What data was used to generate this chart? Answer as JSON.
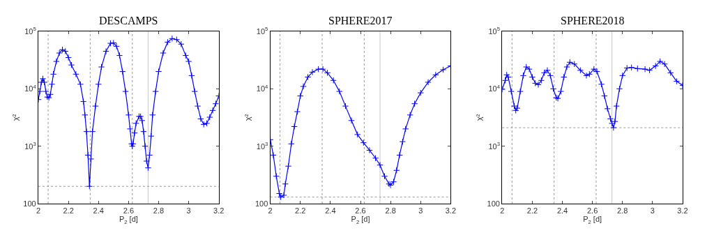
{
  "chart_data": [
    {
      "type": "line",
      "title": "DESCAMPS",
      "xlabel": "P$_{2}$ [d]",
      "ylabel": "χ²",
      "log": "y",
      "grid": false,
      "marker": "cross",
      "line_style": "solid",
      "xlim": [
        2,
        3.2
      ],
      "xticks": [
        2,
        2.2,
        2.4,
        2.6,
        2.8,
        3,
        3.2
      ],
      "ylim": [
        100,
        100000
      ],
      "yticks": [
        100,
        {
          "value": 1000,
          "label": "10$^{3}$"
        },
        {
          "value": 10000,
          "label": "10$^{4}$"
        },
        {
          "value": 100000,
          "label": "10$^{5}$"
        }
      ],
      "x": [
        2.0,
        2.01,
        2.02,
        2.03,
        2.04,
        2.05,
        2.06,
        2.07,
        2.08,
        2.09,
        2.1,
        2.12,
        2.14,
        2.16,
        2.18,
        2.2,
        2.22,
        2.25,
        2.28,
        2.3,
        2.31,
        2.32,
        2.33,
        2.34,
        2.35,
        2.36,
        2.38,
        2.4,
        2.42,
        2.45,
        2.48,
        2.5,
        2.52,
        2.54,
        2.56,
        2.58,
        2.6,
        2.61,
        2.62,
        2.625,
        2.63,
        2.64,
        2.65,
        2.67,
        2.68,
        2.69,
        2.7,
        2.71,
        2.72,
        2.73,
        2.74,
        2.75,
        2.76,
        2.78,
        2.8,
        2.83,
        2.86,
        2.89,
        2.92,
        2.95,
        2.98,
        3.0,
        3.02,
        3.04,
        3.06,
        3.08,
        3.1,
        3.12,
        3.14,
        3.16,
        3.18,
        3.2
      ],
      "series": [
        {
          "color": "#0000ff",
          "values": [
            6500,
            9000,
            13000,
            15000,
            13000,
            9000,
            7200,
            7000,
            8000,
            12000,
            18000,
            30000,
            42000,
            48000,
            45000,
            35000,
            26000,
            18000,
            12000,
            6000,
            3500,
            1800,
            700,
            200,
            600,
            1800,
            5000,
            12000,
            24000,
            45000,
            62000,
            63000,
            55000,
            38000,
            20000,
            9000,
            3500,
            2000,
            1100,
            1000,
            1100,
            1700,
            2500,
            3300,
            3300,
            2800,
            1800,
            1000,
            550,
            420,
            700,
            1500,
            3500,
            9000,
            20000,
            42000,
            65000,
            75000,
            72000,
            60000,
            38000,
            30000,
            17000,
            9000,
            5000,
            3000,
            2400,
            2500,
            3200,
            4200,
            5500,
            7500
          ]
        }
      ],
      "ref_lines": [
        {
          "axis": "x",
          "value": 2.065,
          "color": "#999999",
          "line_style": "dotted"
        },
        {
          "axis": "x",
          "value": 2.345,
          "color": "#999999",
          "line_style": "dotted"
        },
        {
          "axis": "x",
          "value": 2.625,
          "color": "#999999",
          "line_style": "dotted"
        },
        {
          "axis": "x",
          "value": 2.73,
          "color": "#c8c8c8",
          "line_style": "solid"
        },
        {
          "axis": "y",
          "value": 200,
          "color": "#999999",
          "line_style": "dotted"
        }
      ]
    },
    {
      "type": "line",
      "title": "SPHERE2017",
      "xlabel": "P$_{2}$ [d]",
      "ylabel": "χ²",
      "log": "y",
      "grid": false,
      "marker": "cross",
      "line_style": "solid",
      "xlim": [
        2,
        3.2
      ],
      "xticks": [
        2,
        2.2,
        2.4,
        2.6,
        2.8,
        3,
        3.2
      ],
      "ylim": [
        100,
        100000
      ],
      "yticks": [
        100,
        {
          "value": 1000,
          "label": "10$^{3}$"
        },
        {
          "value": 10000,
          "label": "10$^{4}$"
        },
        {
          "value": 100000,
          "label": "10$^{5}$"
        }
      ],
      "x": [
        2.0,
        2.02,
        2.04,
        2.06,
        2.07,
        2.09,
        2.1,
        2.12,
        2.14,
        2.16,
        2.18,
        2.2,
        2.22,
        2.25,
        2.28,
        2.32,
        2.35,
        2.38,
        2.42,
        2.46,
        2.5,
        2.54,
        2.58,
        2.62,
        2.66,
        2.7,
        2.73,
        2.76,
        2.79,
        2.8,
        2.82,
        2.84,
        2.86,
        2.88,
        2.9,
        2.93,
        2.96,
        3.0,
        3.05,
        3.1,
        3.15,
        3.2
      ],
      "series": [
        {
          "color": "#0000ff",
          "values": [
            1300,
            700,
            300,
            150,
            130,
            140,
            220,
            450,
            1100,
            2200,
            4000,
            7500,
            11000,
            16000,
            19500,
            22000,
            22000,
            19000,
            14000,
            9000,
            5000,
            2800,
            1600,
            1150,
            850,
            620,
            470,
            300,
            220,
            210,
            240,
            380,
            700,
            1200,
            2000,
            3500,
            5500,
            8500,
            13000,
            17500,
            21500,
            25000
          ]
        }
      ],
      "ref_lines": [
        {
          "axis": "x",
          "value": 2.065,
          "color": "#999999",
          "line_style": "dotted"
        },
        {
          "axis": "x",
          "value": 2.345,
          "color": "#999999",
          "line_style": "dotted"
        },
        {
          "axis": "x",
          "value": 2.625,
          "color": "#999999",
          "line_style": "dotted"
        },
        {
          "axis": "x",
          "value": 2.73,
          "color": "#c8c8c8",
          "line_style": "solid"
        },
        {
          "axis": "y",
          "value": 130,
          "color": "#999999",
          "line_style": "dotted"
        }
      ]
    },
    {
      "type": "line",
      "title": "SPHERE2018",
      "xlabel": "P$_{2}$ [d]",
      "ylabel": "χ²",
      "log": "y",
      "grid": false,
      "marker": "cross",
      "line_style": "solid",
      "xlim": [
        2,
        3.2
      ],
      "xticks": [
        2,
        2.2,
        2.4,
        2.6,
        2.8,
        3,
        3.2
      ],
      "ylim": [
        100,
        100000
      ],
      "yticks": [
        100,
        {
          "value": 1000,
          "label": "10$^{3}$"
        },
        {
          "value": 10000,
          "label": "10$^{4}$"
        },
        {
          "value": 100000,
          "label": "10$^{5}$"
        }
      ],
      "x": [
        2.0,
        2.02,
        2.03,
        2.04,
        2.06,
        2.08,
        2.09,
        2.1,
        2.12,
        2.14,
        2.16,
        2.18,
        2.2,
        2.22,
        2.24,
        2.26,
        2.28,
        2.3,
        2.32,
        2.34,
        2.36,
        2.37,
        2.39,
        2.41,
        2.43,
        2.45,
        2.48,
        2.52,
        2.56,
        2.58,
        2.61,
        2.63,
        2.66,
        2.68,
        2.7,
        2.72,
        2.73,
        2.74,
        2.75,
        2.76,
        2.78,
        2.8,
        2.83,
        2.86,
        2.9,
        2.95,
        2.98,
        3.02,
        3.05,
        3.08,
        3.12,
        3.16,
        3.2
      ],
      "series": [
        {
          "color": "#0000ff",
          "values": [
            9800,
            14000,
            17500,
            16000,
            9000,
            5000,
            4200,
            4600,
            9000,
            17000,
            24000,
            22000,
            16000,
            12500,
            11800,
            14000,
            19000,
            21000,
            17000,
            10000,
            7000,
            6800,
            9000,
            16000,
            24000,
            29000,
            27000,
            21000,
            17000,
            18000,
            22000,
            20000,
            12000,
            7500,
            4500,
            3000,
            2500,
            2100,
            2700,
            5000,
            10000,
            17000,
            23000,
            23500,
            22500,
            22000,
            21000,
            25000,
            30000,
            27000,
            19000,
            13500,
            11500
          ]
        }
      ],
      "ref_lines": [
        {
          "axis": "x",
          "value": 2.065,
          "color": "#999999",
          "line_style": "dotted"
        },
        {
          "axis": "x",
          "value": 2.345,
          "color": "#999999",
          "line_style": "dotted"
        },
        {
          "axis": "x",
          "value": 2.625,
          "color": "#999999",
          "line_style": "dotted"
        },
        {
          "axis": "x",
          "value": 2.73,
          "color": "#c8c8c8",
          "line_style": "solid"
        },
        {
          "axis": "y",
          "value": 2100,
          "color": "#999999",
          "line_style": "dotted"
        }
      ]
    }
  ]
}
